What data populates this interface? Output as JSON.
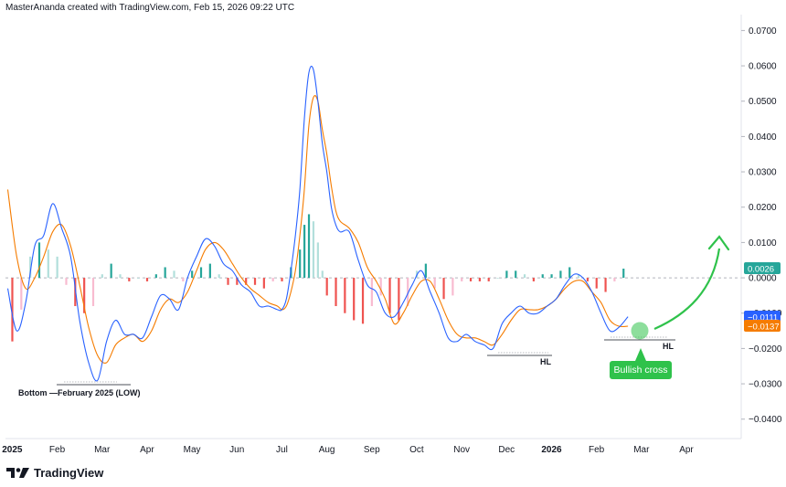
{
  "header": {
    "credit": "MasterAnanda created with TradingView.com, Feb 15, 2026 09:22 UTC"
  },
  "branding": {
    "logo_text": "TradingView",
    "logo_icon": "tradingview-logo-icon"
  },
  "colors": {
    "macd": "#2962ff",
    "signal": "#f57c00",
    "hist_pos": "#26a69a",
    "hist_pos_light": "#b2dfdb",
    "hist_neg": "#ef5350",
    "hist_neg_light": "#f8bbd0",
    "annotation": "#2fc24b",
    "zero_line": "#b2b5be"
  },
  "annotations": {
    "bottom_label": "Bottom —February 2025 (LOW)",
    "hl_1": "HL",
    "hl_2": "HL",
    "bullish_cross": "Bullish cross"
  },
  "badges": {
    "hist": "0.0026",
    "macd": "−0.0111",
    "signal": "−0.0137"
  },
  "chart_data": {
    "type": "line",
    "title": "",
    "xlabel": "",
    "ylabel": "",
    "ylim": [
      -0.0455,
      0.0745
    ],
    "grid": false,
    "yticks": [
      "0.0700",
      "0.0600",
      "0.0500",
      "0.0400",
      "0.0300",
      "0.0200",
      "0.0100",
      "0.0000",
      "−0.0100",
      "−0.0200",
      "−0.0300",
      "−0.0400"
    ],
    "ytick_values": [
      0.07,
      0.06,
      0.05,
      0.04,
      0.03,
      0.02,
      0.01,
      0.0,
      -0.01,
      -0.02,
      -0.03,
      -0.04
    ],
    "xticks": [
      {
        "label": "2025",
        "bold": true,
        "month": 0
      },
      {
        "label": "Feb",
        "bold": false,
        "month": 1
      },
      {
        "label": "Mar",
        "bold": false,
        "month": 2
      },
      {
        "label": "Apr",
        "bold": false,
        "month": 3
      },
      {
        "label": "May",
        "bold": false,
        "month": 4
      },
      {
        "label": "Jun",
        "bold": false,
        "month": 5
      },
      {
        "label": "Jul",
        "bold": false,
        "month": 6
      },
      {
        "label": "Aug",
        "bold": false,
        "month": 7
      },
      {
        "label": "Sep",
        "bold": false,
        "month": 8
      },
      {
        "label": "Oct",
        "bold": false,
        "month": 9
      },
      {
        "label": "Nov",
        "bold": false,
        "month": 10
      },
      {
        "label": "Dec",
        "bold": false,
        "month": 11
      },
      {
        "label": "2026",
        "bold": true,
        "month": 12
      },
      {
        "label": "Feb",
        "bold": false,
        "month": 13
      },
      {
        "label": "Mar",
        "bold": false,
        "month": 14
      },
      {
        "label": "Apr",
        "bold": false,
        "month": 15
      }
    ],
    "xrange_months": [
      -0.15,
      16.2
    ],
    "series": [
      {
        "name": "",
        "key": "macd",
        "x": [
          -0.1,
          0.1,
          0.3,
          0.5,
          0.7,
          0.9,
          1.1,
          1.3,
          1.5,
          1.7,
          1.9,
          2.1,
          2.3,
          2.5,
          2.7,
          2.9,
          3.1,
          3.3,
          3.5,
          3.7,
          3.9,
          4.1,
          4.3,
          4.5,
          4.7,
          4.9,
          5.1,
          5.3,
          5.5,
          5.7,
          5.9,
          6.0,
          6.1,
          6.2,
          6.3,
          6.4,
          6.5,
          6.6,
          6.7,
          6.8,
          6.9,
          7.0,
          7.1,
          7.2,
          7.3,
          7.5,
          7.7,
          7.9,
          8.1,
          8.3,
          8.5,
          8.7,
          8.9,
          9.1,
          9.3,
          9.5,
          9.7,
          9.9,
          10.1,
          10.3,
          10.5,
          10.7,
          10.9,
          11.1,
          11.3,
          11.5,
          11.7,
          11.9,
          12.1,
          12.3,
          12.5,
          12.7,
          12.9,
          13.1,
          13.3,
          13.5,
          13.7
        ],
        "values": [
          -0.003,
          -0.015,
          -0.007,
          0.009,
          0.012,
          0.021,
          0.014,
          0.006,
          -0.012,
          -0.024,
          -0.029,
          -0.018,
          -0.012,
          -0.016,
          -0.016,
          -0.017,
          -0.011,
          -0.005,
          -0.006,
          -0.009,
          0.0,
          0.006,
          0.011,
          0.009,
          0.004,
          0.002,
          -0.002,
          -0.004,
          -0.008,
          -0.008,
          -0.009,
          -0.009,
          -0.006,
          0.002,
          0.012,
          0.025,
          0.045,
          0.058,
          0.059,
          0.05,
          0.038,
          0.03,
          0.02,
          0.015,
          0.013,
          0.013,
          0.005,
          -0.002,
          -0.004,
          -0.01,
          -0.011,
          -0.007,
          -0.002,
          0.002,
          -0.004,
          -0.01,
          -0.017,
          -0.018,
          -0.016,
          -0.018,
          -0.019,
          -0.02,
          -0.013,
          -0.01,
          -0.008,
          -0.01,
          -0.01,
          -0.008,
          -0.006,
          -0.002,
          0.001,
          0.0,
          -0.004,
          -0.01,
          -0.015,
          -0.014,
          -0.011
        ]
      },
      {
        "name": "",
        "key": "signal",
        "x": [
          -0.1,
          0.1,
          0.3,
          0.5,
          0.7,
          0.9,
          1.1,
          1.3,
          1.5,
          1.7,
          1.9,
          2.1,
          2.3,
          2.5,
          2.7,
          2.9,
          3.1,
          3.3,
          3.5,
          3.7,
          3.9,
          4.1,
          4.3,
          4.5,
          4.7,
          4.9,
          5.1,
          5.3,
          5.5,
          5.7,
          5.9,
          6.0,
          6.1,
          6.2,
          6.3,
          6.4,
          6.5,
          6.6,
          6.7,
          6.8,
          6.9,
          7.0,
          7.1,
          7.2,
          7.3,
          7.5,
          7.7,
          7.9,
          8.1,
          8.3,
          8.5,
          8.7,
          8.9,
          9.1,
          9.3,
          9.5,
          9.7,
          9.9,
          10.1,
          10.3,
          10.5,
          10.7,
          10.9,
          11.1,
          11.3,
          11.5,
          11.7,
          11.9,
          12.1,
          12.3,
          12.5,
          12.7,
          12.9,
          13.1,
          13.3,
          13.5,
          13.7
        ],
        "values": [
          0.025,
          0.006,
          -0.003,
          0.0,
          0.006,
          0.013,
          0.015,
          0.009,
          -0.002,
          -0.014,
          -0.022,
          -0.024,
          -0.019,
          -0.017,
          -0.016,
          -0.018,
          -0.015,
          -0.009,
          -0.006,
          -0.007,
          -0.004,
          0.002,
          0.008,
          0.01,
          0.008,
          0.004,
          0.0,
          -0.003,
          -0.005,
          -0.007,
          -0.008,
          -0.009,
          -0.008,
          -0.004,
          0.002,
          0.012,
          0.025,
          0.043,
          0.051,
          0.05,
          0.042,
          0.035,
          0.026,
          0.019,
          0.016,
          0.014,
          0.01,
          0.003,
          -0.001,
          -0.006,
          -0.013,
          -0.01,
          -0.005,
          -0.001,
          -0.001,
          -0.006,
          -0.012,
          -0.016,
          -0.017,
          -0.017,
          -0.018,
          -0.019,
          -0.016,
          -0.012,
          -0.009,
          -0.009,
          -0.009,
          -0.008,
          -0.006,
          -0.003,
          -0.001,
          -0.001,
          -0.004,
          -0.007,
          -0.012,
          -0.0137,
          -0.0137
        ]
      }
    ],
    "histogram": {
      "x": [
        0.0,
        0.2,
        0.4,
        0.6,
        0.8,
        1.0,
        1.2,
        1.4,
        1.6,
        1.8,
        2.0,
        2.2,
        2.4,
        2.6,
        2.8,
        3.0,
        3.2,
        3.4,
        3.6,
        3.8,
        4.0,
        4.2,
        4.4,
        4.6,
        4.8,
        5.0,
        5.2,
        5.4,
        5.6,
        5.8,
        6.0,
        6.2,
        6.4,
        6.5,
        6.6,
        6.7,
        6.8,
        6.9,
        7.0,
        7.2,
        7.4,
        7.6,
        7.8,
        8.0,
        8.2,
        8.4,
        8.6,
        8.8,
        9.0,
        9.2,
        9.4,
        9.6,
        9.8,
        10.0,
        10.2,
        10.4,
        10.6,
        10.8,
        11.0,
        11.2,
        11.4,
        11.6,
        11.8,
        12.0,
        12.2,
        12.4,
        12.6,
        12.8,
        13.0,
        13.2,
        13.4,
        13.6
      ],
      "values": [
        -0.018,
        -0.009,
        0.006,
        0.01,
        0.008,
        0.006,
        -0.002,
        -0.008,
        -0.01,
        -0.008,
        0.001,
        0.004,
        0.001,
        -0.001,
        0.0,
        -0.001,
        0.001,
        0.003,
        0.002,
        -0.001,
        0.002,
        0.003,
        0.004,
        0.001,
        -0.002,
        -0.002,
        -0.002,
        -0.002,
        -0.003,
        -0.001,
        -0.001,
        0.003,
        0.008,
        0.015,
        0.018,
        0.016,
        0.01,
        0.002,
        -0.005,
        -0.008,
        -0.01,
        -0.012,
        -0.013,
        -0.008,
        -0.005,
        -0.01,
        -0.012,
        -0.008,
        0.002,
        0.004,
        -0.003,
        -0.006,
        -0.005,
        -0.001,
        -0.001,
        -0.001,
        -0.001,
        0.0,
        0.002,
        0.002,
        0.001,
        -0.001,
        0.001,
        0.001,
        0.002,
        0.003,
        0.001,
        -0.001,
        -0.003,
        -0.004,
        -0.001,
        0.0026
      ]
    }
  }
}
